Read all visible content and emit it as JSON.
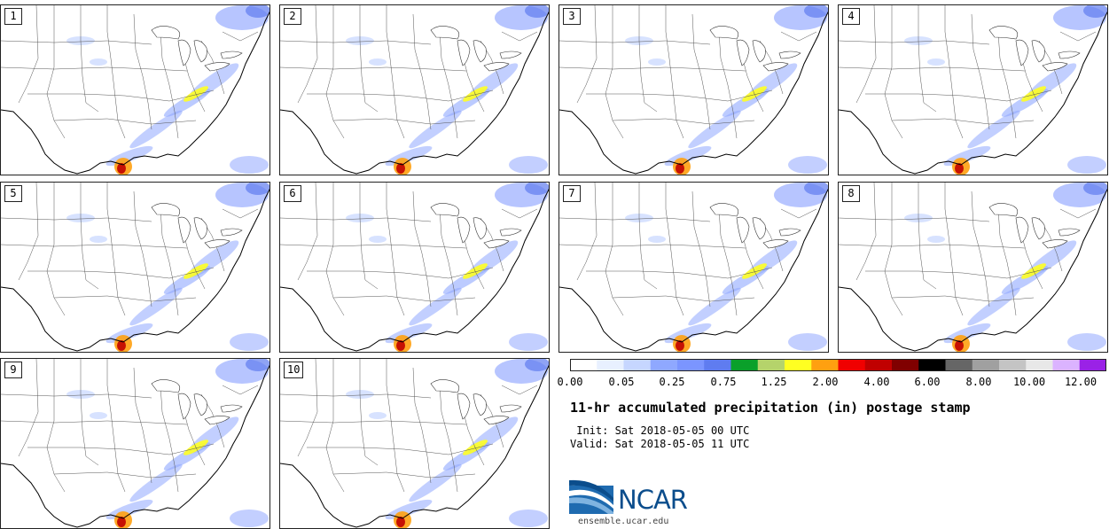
{
  "panels": [
    {
      "label": "1"
    },
    {
      "label": "2"
    },
    {
      "label": "3"
    },
    {
      "label": "4"
    },
    {
      "label": "5"
    },
    {
      "label": "6"
    },
    {
      "label": "7"
    },
    {
      "label": "8"
    },
    {
      "label": "9"
    },
    {
      "label": "10"
    }
  ],
  "colorbar": {
    "colors": [
      "#ffffff",
      "#e8f0ff",
      "#c6d6ff",
      "#8fa8ff",
      "#7b95ff",
      "#5f7cf0",
      "#0aa02a",
      "#b5d36b",
      "#ffff22",
      "#ffa010",
      "#f00000",
      "#c00000",
      "#800000",
      "#000000",
      "#666666",
      "#a0a0a0",
      "#c4c4c4",
      "#e8e8e8",
      "#dbb3ff",
      "#9a22e6"
    ],
    "ticks": [
      "0.00",
      "0.05",
      "0.25",
      "0.75",
      "1.25",
      "2.00",
      "4.00",
      "6.00",
      "8.00",
      "10.00",
      "12.00"
    ]
  },
  "title": "11-hr accumulated precipitation (in) postage stamp",
  "init": " Init: Sat 2018-05-05 00 UTC",
  "valid": "Valid: Sat 2018-05-05 11 UTC",
  "logo": {
    "text": "NCAR",
    "url": "ensemble.ucar.edu"
  }
}
